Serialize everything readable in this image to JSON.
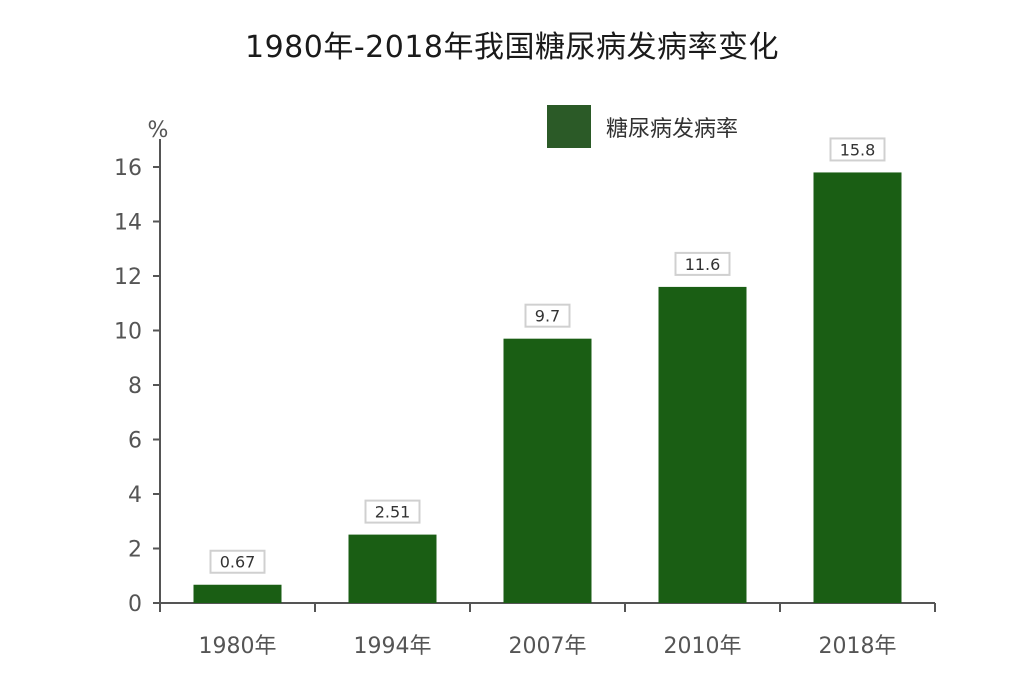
{
  "chart_data": {
    "type": "bar",
    "title": "1980年-2018年我国糖尿病发病率变化",
    "ylabel": "%",
    "xlabel": "",
    "categories": [
      "1980年",
      "1994年",
      "2007年",
      "2010年",
      "2018年"
    ],
    "series": [
      {
        "name": "糖尿病发病率",
        "values": [
          0.67,
          2.51,
          9.7,
          11.6,
          15.8
        ]
      }
    ],
    "data_labels": [
      "0.67",
      "2.51",
      "9.7",
      "11.6",
      "15.8"
    ],
    "ylim": [
      0,
      16
    ],
    "yticks": [
      0,
      2,
      4,
      6,
      8,
      10,
      12,
      14,
      16
    ],
    "grid": false,
    "legend_position": "top-right",
    "colors": {
      "bar": "#1a5e14",
      "legend_swatch": "#2b5a27",
      "axis": "#555555",
      "tick_label": "#555555",
      "data_label_border": "#d0d0d0"
    }
  }
}
